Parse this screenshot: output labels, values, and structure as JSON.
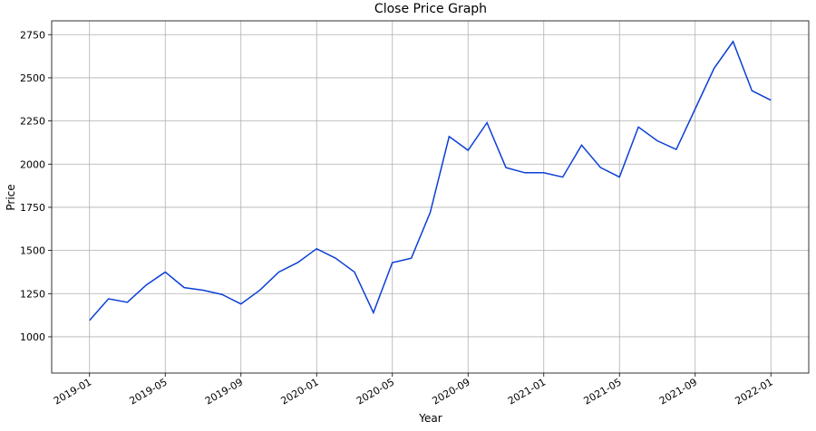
{
  "chart_data": {
    "type": "line",
    "title": "Close Price Graph",
    "x_label": "Year",
    "y_label": "Price",
    "x": [
      "2019-01",
      "2019-02",
      "2019-03",
      "2019-04",
      "2019-05",
      "2019-06",
      "2019-07",
      "2019-08",
      "2019-09",
      "2019-10",
      "2019-11",
      "2019-12",
      "2020-01",
      "2020-02",
      "2020-03",
      "2020-04",
      "2020-05",
      "2020-06",
      "2020-07",
      "2020-08",
      "2020-09",
      "2020-10",
      "2020-11",
      "2020-12",
      "2021-01",
      "2021-02",
      "2021-03",
      "2021-04",
      "2021-05",
      "2021-06",
      "2021-07",
      "2021-08",
      "2021-09",
      "2021-10",
      "2021-11",
      "2021-12",
      "2022-01"
    ],
    "series": [
      {
        "name": "Close",
        "color": "#0b3fd6",
        "values": [
          1095,
          1220,
          1200,
          1300,
          1375,
          1285,
          1270,
          1245,
          1190,
          1270,
          1375,
          1430,
          1510,
          1455,
          1375,
          1140,
          1430,
          1455,
          1720,
          2160,
          2080,
          2240,
          1980,
          1950,
          1950,
          1925,
          2110,
          1980,
          1925,
          2215,
          2135,
          2085,
          2320,
          2555,
          2710,
          2425,
          2370
        ]
      }
    ],
    "xlim": [
      "2018-11",
      "2022-03"
    ],
    "xticks": [
      "2019-01",
      "2019-05",
      "2019-09",
      "2020-01",
      "2020-05",
      "2020-09",
      "2021-01",
      "2021-05",
      "2021-09",
      "2022-01"
    ],
    "ylim": [
      790,
      2830
    ],
    "yticks": [
      1000,
      1250,
      1500,
      1750,
      2000,
      2250,
      2500,
      2750
    ],
    "grid": true
  }
}
